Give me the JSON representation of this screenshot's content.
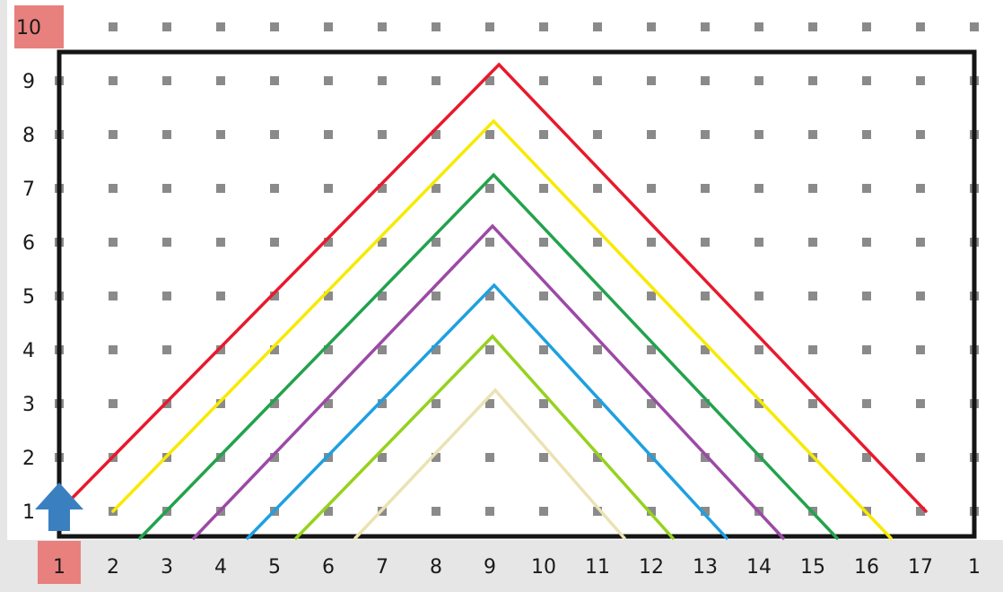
{
  "x_axis": {
    "labels": [
      "1",
      "2",
      "3",
      "4",
      "5",
      "6",
      "7",
      "8",
      "9",
      "10",
      "11",
      "12",
      "13",
      "14",
      "15",
      "16",
      "17",
      "1"
    ],
    "highlighted_label": "1"
  },
  "y_axis": {
    "labels": [
      "1",
      "2",
      "3",
      "4",
      "5",
      "6",
      "7",
      "8",
      "9",
      "10"
    ],
    "highlighted_label": "10"
  },
  "colors": {
    "gutter": "#e6e6e6",
    "highlight": "#e8807e",
    "frame": "#151515",
    "dot": "#8a8a8a",
    "robot": "#3a80c0"
  },
  "cursor": {
    "icon": "arrow-up-icon",
    "column": 1,
    "row": 1
  },
  "paths": [
    {
      "color": "#e8192c",
      "points": [
        [
          1.0,
          1.0
        ],
        [
          9.17,
          9.3
        ],
        [
          17.1,
          1.0
        ]
      ]
    },
    {
      "color": "#f7ea00",
      "points": [
        [
          2.0,
          1.0
        ],
        [
          9.07,
          8.25
        ],
        [
          16.45,
          0.5
        ]
      ]
    },
    {
      "color": "#23a24d",
      "points": [
        [
          2.5,
          0.5
        ],
        [
          9.07,
          7.25
        ],
        [
          15.45,
          0.5
        ]
      ]
    },
    {
      "color": "#9b4aa5",
      "points": [
        [
          3.5,
          0.5
        ],
        [
          9.05,
          6.3
        ],
        [
          14.45,
          0.5
        ]
      ]
    },
    {
      "color": "#1ea0e0",
      "points": [
        [
          4.5,
          0.5
        ],
        [
          9.08,
          5.2
        ],
        [
          13.4,
          0.5
        ]
      ]
    },
    {
      "color": "#95d21e",
      "points": [
        [
          5.4,
          0.5
        ],
        [
          9.05,
          4.25
        ],
        [
          12.4,
          0.5
        ]
      ]
    },
    {
      "color": "#ece2b2",
      "points": [
        [
          6.5,
          0.5
        ],
        [
          9.1,
          3.25
        ],
        [
          11.5,
          0.5
        ]
      ]
    }
  ]
}
